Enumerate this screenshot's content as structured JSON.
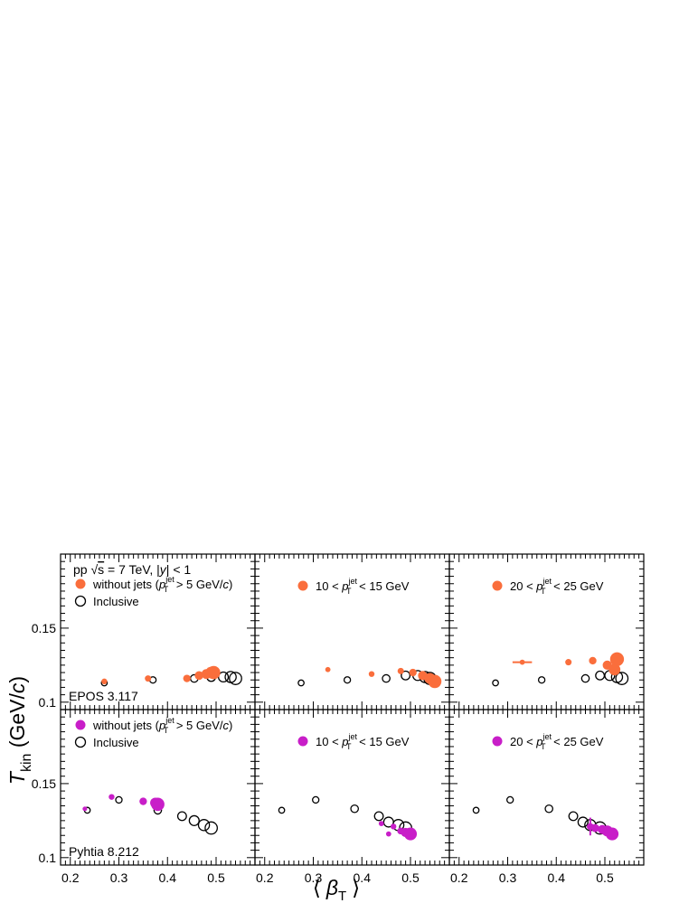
{
  "figure": {
    "ylabel": "T_kin (GeV/c)",
    "ylabel_main": "T",
    "ylabel_sub": "kin",
    "ylabel_unit_open": " (GeV/",
    "ylabel_unit_c": "c",
    "ylabel_unit_close": ")",
    "xlabel": "⟨ β_T ⟩",
    "xlabel_open": "⟨",
    "xlabel_beta": "β",
    "xlabel_sub": "T",
    "xlabel_close": "⟩"
  },
  "colors": {
    "epos": "#fa6e3c",
    "pythia": "#c81ec8",
    "inclusive": "#000000"
  },
  "chart_data": {
    "type": "scatter",
    "xlim": [
      0.18,
      0.58
    ],
    "ylim": [
      0.095,
      0.2
    ],
    "x_ticks": [
      0.2,
      0.3,
      0.4,
      0.5
    ],
    "x_tick_labels": [
      "0.2",
      "0.3",
      "0.4",
      "0.5"
    ],
    "y_ticks": [
      0.1,
      0.15
    ],
    "y_tick_labels": [
      "0.1",
      "0.15"
    ],
    "grid": false,
    "header": {
      "prefix": "pp ",
      "sqrt": "√",
      "s": "s",
      "rest": " = 7 TeV, |",
      "y": "y",
      "tail": "| < 1"
    },
    "rows": [
      {
        "generator": "EPOS 3.117",
        "color_key": "epos",
        "panels": [
          {
            "legend": [
              {
                "marker": "filled",
                "pre": "without jets (",
                "p": "p",
                "sup": "jet",
                "sub": "T",
                "post": " > 5 GeV/",
                "unit_italic": "c",
                "end": ")"
              },
              {
                "marker": "open",
                "text": "Inclusive"
              }
            ],
            "series": [
              {
                "name": "without jets",
                "style": "filled",
                "x": [
                  0.27,
                  0.36,
                  0.44,
                  0.465,
                  0.48,
                  0.49,
                  0.495
                ],
                "y": [
                  0.114,
                  0.116,
                  0.116,
                  0.118,
                  0.119,
                  0.12,
                  0.12
                ],
                "size": [
                  1,
                  1.1,
                  1.3,
                  1.5,
                  1.7,
                  2.0,
                  2.3
                ]
              },
              {
                "name": "Inclusive",
                "style": "open",
                "x": [
                  0.27,
                  0.37,
                  0.455,
                  0.49,
                  0.515,
                  0.53,
                  0.54
                ],
                "y": [
                  0.113,
                  0.115,
                  0.116,
                  0.117,
                  0.117,
                  0.117,
                  0.116
                ],
                "size": [
                  1,
                  1.1,
                  1.3,
                  1.5,
                  1.7,
                  1.9,
                  2.1
                ]
              }
            ]
          },
          {
            "legend": [
              {
                "marker": "filled",
                "pre": "10 < ",
                "p": "p",
                "sup": "jet",
                "sub": "T",
                "post": " < 15 GeV"
              }
            ],
            "series": [
              {
                "name": "10 < pT jet < 15 GeV",
                "style": "filled",
                "x": [
                  0.33,
                  0.42,
                  0.48,
                  0.505,
                  0.525,
                  0.54,
                  0.55
                ],
                "y": [
                  0.122,
                  0.119,
                  0.121,
                  0.12,
                  0.118,
                  0.116,
                  0.114
                ],
                "size": [
                  0.9,
                  1.0,
                  1.1,
                  1.3,
                  1.6,
                  1.9,
                  2.3
                ]
              },
              {
                "name": "Inclusive",
                "style": "open",
                "x": [
                  0.275,
                  0.37,
                  0.45,
                  0.49,
                  0.515,
                  0.53,
                  0.54
                ],
                "y": [
                  0.113,
                  0.115,
                  0.116,
                  0.118,
                  0.118,
                  0.117,
                  0.116
                ],
                "size": [
                  1,
                  1.1,
                  1.3,
                  1.5,
                  1.7,
                  1.9,
                  2.1
                ]
              }
            ]
          },
          {
            "legend": [
              {
                "marker": "filled",
                "pre": "20 < ",
                "p": "p",
                "sup": "jet",
                "sub": "T",
                "post": " < 25 GeV"
              }
            ],
            "series": [
              {
                "name": "20 < pT jet < 25 GeV",
                "style": "filled",
                "x": [
                  0.33,
                  0.425,
                  0.475,
                  0.505,
                  0.52,
                  0.525
                ],
                "y": [
                  0.127,
                  0.127,
                  0.128,
                  0.125,
                  0.122,
                  0.129
                ],
                "size": [
                  0.9,
                  1.1,
                  1.3,
                  1.6,
                  2.0,
                  2.4
                ],
                "xerr": [
                  0.02,
                  0,
                  0,
                  0,
                  0,
                  0
                ]
              },
              {
                "name": "Inclusive",
                "style": "open",
                "x": [
                  0.275,
                  0.37,
                  0.46,
                  0.49,
                  0.51,
                  0.525,
                  0.535
                ],
                "y": [
                  0.113,
                  0.115,
                  0.116,
                  0.118,
                  0.118,
                  0.117,
                  0.116
                ],
                "size": [
                  1,
                  1.1,
                  1.3,
                  1.5,
                  1.7,
                  1.9,
                  2.1
                ]
              }
            ]
          }
        ]
      },
      {
        "generator": "Pyhtia 8.212",
        "color_key": "pythia",
        "panels": [
          {
            "legend": [
              {
                "marker": "filled",
                "pre": "without jets (",
                "p": "p",
                "sup": "jet",
                "sub": "T",
                "post": " > 5 GeV/",
                "unit_italic": "c",
                "end": ")"
              },
              {
                "marker": "open",
                "text": "Inclusive"
              }
            ],
            "series": [
              {
                "name": "without jets",
                "style": "filled",
                "x": [
                  0.23,
                  0.285,
                  0.35,
                  0.375,
                  0.38
                ],
                "y": [
                  0.133,
                  0.141,
                  0.138,
                  0.137,
                  0.136
                ],
                "size": [
                  0.8,
                  1.0,
                  1.3,
                  1.8,
                  2.3
                ]
              },
              {
                "name": "Inclusive",
                "style": "open",
                "x": [
                  0.235,
                  0.3,
                  0.38,
                  0.43,
                  0.455,
                  0.475,
                  0.49
                ],
                "y": [
                  0.132,
                  0.139,
                  0.132,
                  0.128,
                  0.125,
                  0.122,
                  0.12
                ],
                "size": [
                  1,
                  1.1,
                  1.3,
                  1.5,
                  1.7,
                  1.9,
                  2.1
                ]
              }
            ]
          },
          {
            "legend": [
              {
                "marker": "filled",
                "pre": "10 < ",
                "p": "p",
                "sup": "jet",
                "sub": "T",
                "post": " < 15 GeV"
              }
            ],
            "series": [
              {
                "name": "10 < pT jet < 15 GeV",
                "style": "filled",
                "x": [
                  0.44,
                  0.455,
                  0.465,
                  0.48,
                  0.49,
                  0.5
                ],
                "y": [
                  0.123,
                  0.116,
                  0.121,
                  0.118,
                  0.117,
                  0.116
                ],
                "size": [
                  0.9,
                  0.9,
                  1.0,
                  1.2,
                  1.6,
                  2.2
                ]
              },
              {
                "name": "Inclusive",
                "style": "open",
                "x": [
                  0.235,
                  0.305,
                  0.385,
                  0.435,
                  0.455,
                  0.475,
                  0.49
                ],
                "y": [
                  0.132,
                  0.139,
                  0.133,
                  0.128,
                  0.124,
                  0.122,
                  0.12
                ],
                "size": [
                  1,
                  1.1,
                  1.3,
                  1.5,
                  1.7,
                  1.9,
                  2.1
                ]
              }
            ]
          },
          {
            "legend": [
              {
                "marker": "filled",
                "pre": "20 < ",
                "p": "p",
                "sup": "jet",
                "sub": "T",
                "post": " < 25 GeV"
              }
            ],
            "series": [
              {
                "name": "20 < pT jet < 25 GeV",
                "style": "filled",
                "x": [
                  0.47,
                  0.48,
                  0.495,
                  0.505,
                  0.515
                ],
                "y": [
                  0.121,
                  0.12,
                  0.119,
                  0.118,
                  0.116
                ],
                "size": [
                  1.2,
                  1.4,
                  1.6,
                  1.9,
                  2.2
                ],
                "yerr": [
                  0.006,
                  0,
                  0,
                  0,
                  0
                ]
              },
              {
                "name": "Inclusive",
                "style": "open",
                "x": [
                  0.235,
                  0.305,
                  0.385,
                  0.435,
                  0.455,
                  0.47,
                  0.49
                ],
                "y": [
                  0.132,
                  0.139,
                  0.133,
                  0.128,
                  0.124,
                  0.122,
                  0.12
                ],
                "size": [
                  1,
                  1.1,
                  1.3,
                  1.5,
                  1.7,
                  1.9,
                  2.1
                ]
              }
            ]
          }
        ]
      }
    ]
  }
}
